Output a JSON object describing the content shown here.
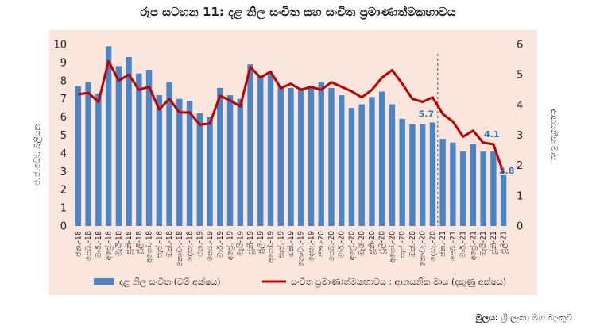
{
  "chart_data": {
    "type": "bar",
    "title": "රූප සටහන 11: දළ නිල සංචිත සහ සංචිත ප්‍රමාණාත්මකභාවය",
    "ylabel": "එ.ජ.ඩො. බිලියන",
    "ylabel_right": "ආනයනික මාස",
    "ylim": [
      0,
      10
    ],
    "ylim_right": [
      0,
      6
    ],
    "yticks": [
      "0",
      "1",
      "2",
      "3",
      "4",
      "5",
      "6",
      "7",
      "8",
      "9",
      "10"
    ],
    "yticks_right": [
      "0",
      "1",
      "2",
      "3",
      "4",
      "5",
      "6"
    ],
    "categories": [
      "ජන.-18",
      "පෙබ.-18",
      "මාර්.-18",
      "අප්‍රේ.-18",
      "මැයි-18",
      "ජූනි-18",
      "ජූලි-18",
      "අගෝ.-18",
      "සැප්.-18",
      "ඔක්.-18",
      "නොවැ.-18",
      "දෙසැ.-18",
      "ජන.-19",
      "පෙබ.-19",
      "මාර්.-19",
      "අප්‍රේ.-19",
      "මැයි-19",
      "ජූනි-19",
      "ජූලි-19",
      "අගෝ.-19",
      "සැප්.-19",
      "ඔක්.-19",
      "නොවැ.-19",
      "දෙසැ.-19",
      "ජන.-20",
      "පෙබ.-20",
      "මාර්.-20",
      "අප්‍රේ.-20",
      "මැයි-20",
      "ජූනි-20",
      "ජූලි-20",
      "අගෝ.-20",
      "සැප්.-20",
      "ඔක්.-20",
      "නොවැ.-20",
      "දෙසැ.-20",
      "ජන.-21",
      "පෙබ.-21",
      "මාර්.-21",
      "අප්‍රේ.-21",
      "මැයි-21",
      "ජූනි-21",
      "ජූලි-21"
    ],
    "x_tick_labels": [
      "ජන.-18",
      "පෙබ.-18",
      "මාර්.-18",
      "අප්‍රේ.-18",
      "මැයි-18",
      "ජූනි-18",
      "ජූලි-18",
      "අගෝ.-18",
      "සැප්.-18",
      "ඔක්.-18",
      "නොවැ.-18",
      "දෙසැ.-18",
      "ජන.-19",
      "පෙබ.-19",
      "මාර්.-19",
      "අප්‍රේ.-19",
      "මැයි-19",
      "ජූනි-19",
      "ජූලි-19",
      "අගෝ.-19",
      "සැප්.-19",
      "ඔක්.-19",
      "නොවැ.-19",
      "දෙසැ.-19",
      "ජන.-20",
      "පෙබ.-20",
      "මාර්.-20",
      "අප්‍රේ.-20",
      "මැයි-20",
      "ජූනි-20",
      "ජූලි-20",
      "අගෝ.-20",
      "සැප්.-20",
      "ඔක්.-20",
      "නොවැ.-20",
      "දෙසැ.-20",
      "ජන.-21",
      "පෙබ.-21",
      "මාර්.-21",
      "අප්‍රේ.-21",
      "මැයි-21",
      "ජූනි-21",
      "ජූලි-21"
    ],
    "series": [
      {
        "name": "දළ නිල සංචිත (වම් අක්ෂය)",
        "type": "bar",
        "axis": "left",
        "color": "#4a86c5",
        "values": [
          7.7,
          7.9,
          7.3,
          9.9,
          8.8,
          9.3,
          8.4,
          8.6,
          7.2,
          7.9,
          7.0,
          6.9,
          6.2,
          6.0,
          7.6,
          7.2,
          7.0,
          8.9,
          8.2,
          8.4,
          7.7,
          7.6,
          7.6,
          7.6,
          7.9,
          7.6,
          7.2,
          6.5,
          6.7,
          7.1,
          7.4,
          6.7,
          5.9,
          5.6,
          5.6,
          5.7,
          4.8,
          4.6,
          4.1,
          4.5,
          4.1,
          4.1,
          2.8
        ]
      },
      {
        "name": "සංචිත ප්‍රමාණාත්මකභාවය : ආනයනික මාස (දකුණු අක්ෂය)",
        "type": "line",
        "axis": "right",
        "color": "#c00000",
        "values": [
          4.35,
          4.4,
          4.1,
          5.45,
          4.8,
          5.0,
          4.5,
          4.6,
          3.85,
          4.2,
          3.75,
          3.75,
          3.35,
          3.38,
          4.3,
          4.15,
          3.95,
          5.25,
          4.9,
          5.1,
          4.55,
          4.7,
          4.5,
          4.6,
          4.5,
          4.75,
          4.6,
          4.45,
          4.25,
          4.5,
          4.9,
          5.15,
          4.7,
          4.2,
          4.1,
          4.25,
          3.7,
          3.45,
          2.95,
          3.15,
          2.75,
          2.7,
          1.75
        ]
      }
    ],
    "data_labels": [
      {
        "series": 0,
        "index": 35,
        "text": "5.7"
      },
      {
        "series": 0,
        "index": 41,
        "text": "4.1"
      },
      {
        "series": 0,
        "index": 42,
        "text": "2.8"
      }
    ],
    "divider_after_index": 35,
    "legend_position": "bottom",
    "grid": false
  },
  "source_label": "මූලය:",
  "source_text": "ශ්‍රී ලංකා මහ බැංකුව"
}
